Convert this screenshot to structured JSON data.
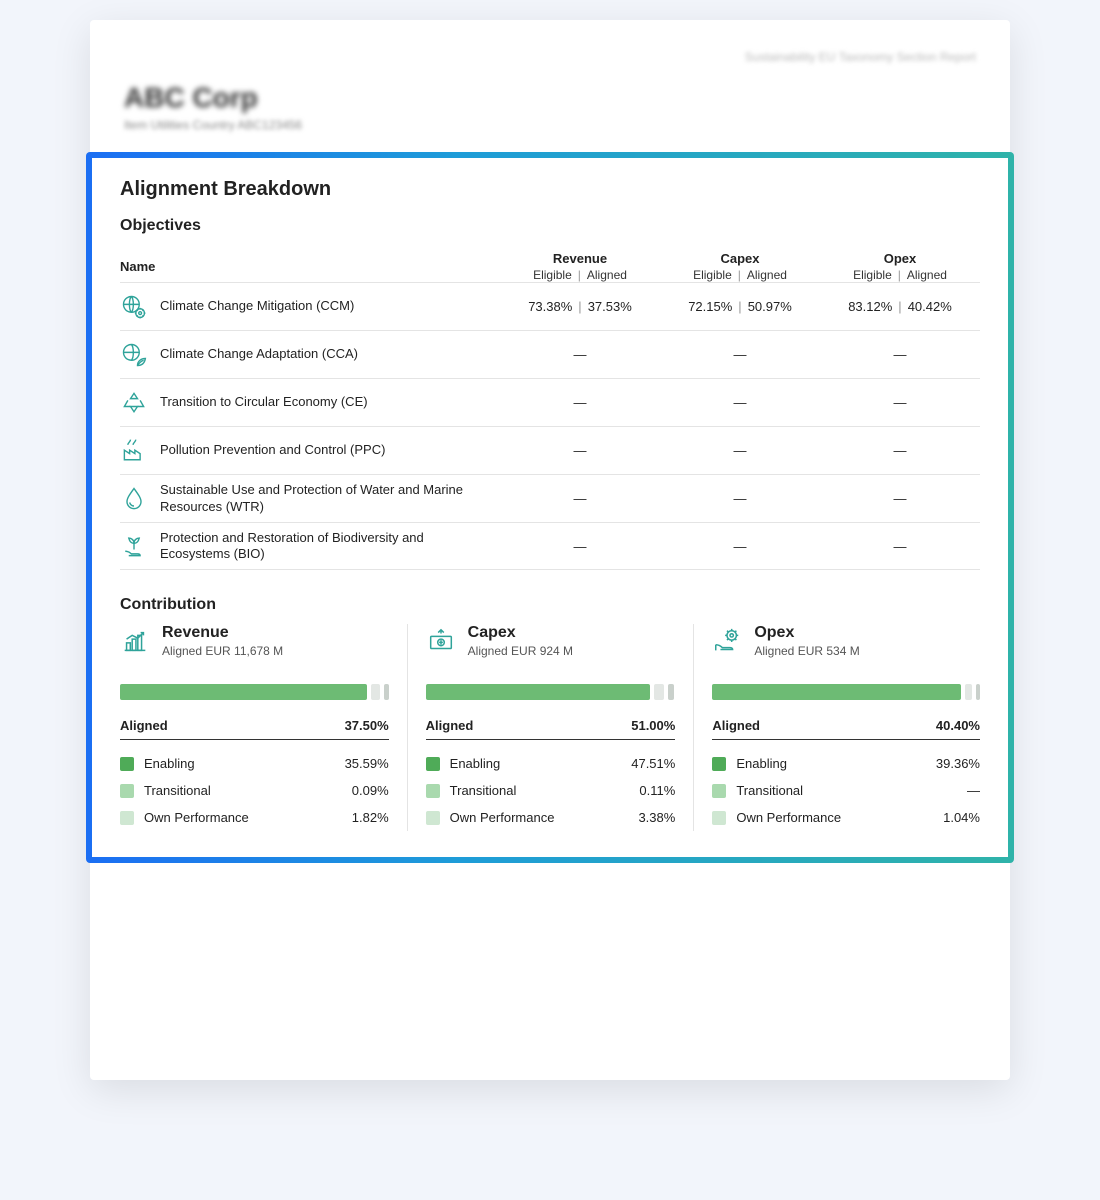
{
  "header": {
    "meta_right": "Sustainability EU Taxonomy Section Report",
    "company": "ABC Corp",
    "sub": "Item Utilities    Country    ABC123456"
  },
  "panel": {
    "title": "Alignment Breakdown",
    "objectives_title": "Objectives",
    "cols": {
      "name": "Name",
      "revenue": "Revenue",
      "capex": "Capex",
      "opex": "Opex",
      "eligible": "Eligible",
      "aligned": "Aligned"
    },
    "rows": [
      {
        "label": "Climate Change Mitigation (CCM)",
        "revenue_eligible": "73.38%",
        "revenue_aligned": "37.53%",
        "capex_eligible": "72.15%",
        "capex_aligned": "50.97%",
        "opex_eligible": "83.12%",
        "opex_aligned": "40.42%"
      },
      {
        "label": "Climate Change Adaptation (CCA)",
        "revenue_eligible": "—",
        "capex_eligible": "—",
        "opex_eligible": "—"
      },
      {
        "label": "Transition to Circular Economy (CE)",
        "revenue_eligible": "—",
        "capex_eligible": "—",
        "opex_eligible": "—"
      },
      {
        "label": "Pollution Prevention and Control (PPC)",
        "revenue_eligible": "—",
        "capex_eligible": "—",
        "opex_eligible": "—"
      },
      {
        "label": "Sustainable Use and Protection of Water and Marine Resources (WTR)",
        "revenue_eligible": "—",
        "capex_eligible": "—",
        "opex_eligible": "—"
      },
      {
        "label": "Protection and Restoration of Biodiversity and Ecosystems (BIO)",
        "revenue_eligible": "—",
        "capex_eligible": "—",
        "opex_eligible": "—"
      }
    ]
  },
  "contribution": {
    "title": "Contribution",
    "legend": {
      "aligned": "Aligned",
      "enabling": "Enabling",
      "transitional": "Transitional",
      "own": "Own Performance"
    },
    "swatch_colors": {
      "enabling": "#4fab58",
      "transitional": "#a9d9ae",
      "own": "#cfe7d2"
    },
    "bar_fill_color": "#6dbb74",
    "items": [
      {
        "key": "revenue",
        "title": "Revenue",
        "sub": "Aligned EUR 11,678 M",
        "aligned_pct_label": "37.50%",
        "bar_fill_pct": 92,
        "enabling": "35.59%",
        "transitional": "0.09%",
        "own": "1.82%"
      },
      {
        "key": "capex",
        "title": "Capex",
        "sub": "Aligned EUR 924 M",
        "aligned_pct_label": "51.00%",
        "bar_fill_pct": 90,
        "enabling": "47.51%",
        "transitional": "0.11%",
        "own": "3.38%"
      },
      {
        "key": "opex",
        "title": "Opex",
        "sub": "Aligned EUR 534 M",
        "aligned_pct_label": "40.40%",
        "bar_fill_pct": 93,
        "enabling": "39.36%",
        "transitional": "—",
        "own": "1.04%"
      }
    ]
  }
}
